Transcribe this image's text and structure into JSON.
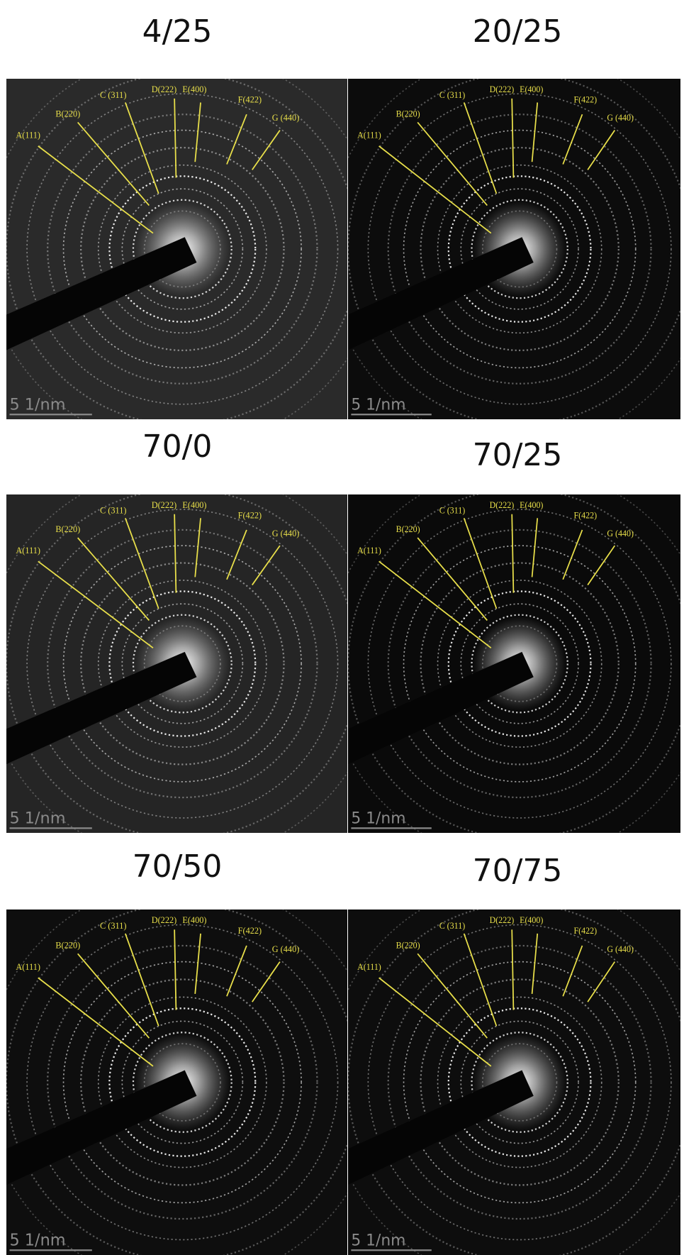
{
  "panels": [
    {
      "title": "4/25",
      "labels": [
        "A(111)",
        "B(220)",
        "C (311)",
        "D(222)",
        "E(400)",
        "F(422)",
        "G (440)"
      ],
      "scale_bar": "5 1/nm"
    },
    {
      "title": "20/25",
      "labels": [
        "A(111)",
        "B(220)",
        "C (311)",
        "D(222)",
        "E(400)",
        "F(422)",
        "G (440)"
      ],
      "scale_bar": "5 1/nm"
    },
    {
      "title": "70/0",
      "labels": [
        "A(111)",
        "B(220)",
        "C (311)",
        "D(222)",
        "E(400)",
        "F(422)",
        "G (440)"
      ],
      "scale_bar": "5 1/nm"
    },
    {
      "title": "70/25",
      "labels": [
        "A(111)",
        "B(220)",
        "C (311)",
        "D(222)",
        "E(400)",
        "F(422)",
        "G (440)"
      ],
      "scale_bar": "5 1/nm"
    },
    {
      "title": "70/50",
      "labels": [
        "A(111)",
        "B(220)",
        "C (311)",
        "D(222)",
        "E(400)",
        "F(422)",
        "G (440)"
      ],
      "scale_bar": "5 1/nm"
    },
    {
      "title": "70/75",
      "labels": [
        "A(111)",
        "B(220)",
        "C (311)",
        "D(222)",
        "E(400)",
        "F(422)",
        "G (440)"
      ],
      "scale_bar": "5 1/nm"
    }
  ]
}
